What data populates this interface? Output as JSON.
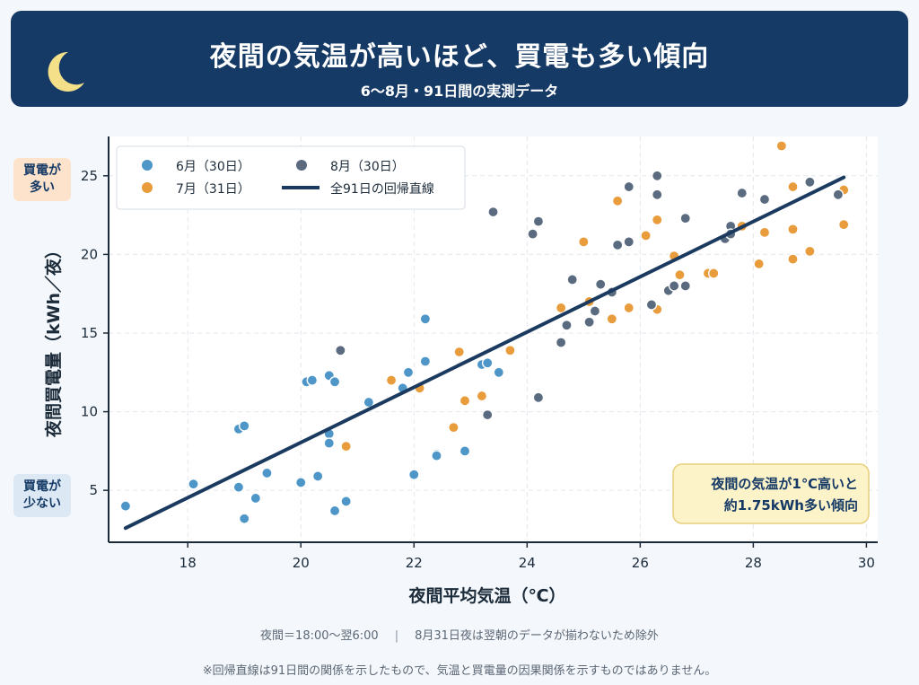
{
  "header": {
    "title": "夜間の気温が高いほど、買電も多い傾向",
    "subtitle": "6〜8月・91日間の実測データ"
  },
  "side_labels": {
    "high": "買電が\n多い",
    "low": "買電が\n少ない"
  },
  "annotation": {
    "line1": "夜間の気温が1℃高いと",
    "line2": "約1.75kWh多い傾向"
  },
  "footer": {
    "definition": "夜間＝18:00〜翌6:00",
    "exclusion": "8月31日夜は翌朝のデータが揃わないため除外",
    "disclaimer": "※回帰直線は91日間の関係を示したもので、気温と買電量の因果関係を示すものではありません。"
  },
  "colors": {
    "june": "#4e96c8",
    "july": "#e89c3c",
    "august": "#5a6b80",
    "regression": "#1b3a5f",
    "banner": "#163a66"
  },
  "chart_data": {
    "type": "scatter",
    "xlabel": "夜間平均気温（℃）",
    "ylabel": "夜間買電量（kWh／夜）",
    "xlim": [
      16.6,
      30.2
    ],
    "ylim": [
      1.7,
      27.5
    ],
    "xticks": [
      18,
      20,
      22,
      24,
      26,
      28,
      30
    ],
    "yticks": [
      5,
      10,
      15,
      20,
      25
    ],
    "grid": true,
    "legend_position": "top-left",
    "series": [
      {
        "name": "6月（30日）",
        "color": "#4e96c8",
        "points": [
          [
            16.9,
            4.0
          ],
          [
            18.1,
            5.4
          ],
          [
            18.9,
            5.2
          ],
          [
            18.9,
            8.9
          ],
          [
            19.0,
            9.1
          ],
          [
            19.0,
            3.2
          ],
          [
            19.2,
            4.5
          ],
          [
            19.4,
            6.1
          ],
          [
            20.0,
            5.5
          ],
          [
            20.1,
            11.9
          ],
          [
            20.2,
            12.0
          ],
          [
            20.3,
            5.9
          ],
          [
            20.5,
            8.6
          ],
          [
            20.5,
            12.3
          ],
          [
            20.6,
            11.9
          ],
          [
            20.5,
            8.0
          ],
          [
            20.6,
            3.7
          ],
          [
            20.8,
            4.3
          ],
          [
            21.2,
            10.6
          ],
          [
            21.8,
            11.5
          ],
          [
            21.9,
            12.5
          ],
          [
            22.0,
            6.0
          ],
          [
            22.2,
            13.2
          ],
          [
            22.2,
            15.9
          ],
          [
            22.4,
            7.3
          ],
          [
            22.9,
            7.5
          ],
          [
            23.2,
            13.0
          ],
          [
            23.3,
            13.1
          ],
          [
            23.5,
            12.5
          ],
          [
            22.4,
            7.2
          ]
        ]
      },
      {
        "name": "7月（31日）",
        "color": "#e89c3c",
        "points": [
          [
            20.8,
            7.8
          ],
          [
            21.6,
            12.0
          ],
          [
            22.1,
            11.5
          ],
          [
            22.7,
            9.0
          ],
          [
            22.8,
            13.8
          ],
          [
            22.9,
            10.7
          ],
          [
            23.2,
            11.0
          ],
          [
            23.7,
            13.9
          ],
          [
            24.6,
            16.6
          ],
          [
            25.0,
            20.8
          ],
          [
            25.1,
            17.0
          ],
          [
            25.5,
            15.9
          ],
          [
            25.6,
            23.4
          ],
          [
            25.8,
            16.6
          ],
          [
            26.1,
            21.2
          ],
          [
            26.3,
            22.2
          ],
          [
            26.3,
            16.5
          ],
          [
            26.6,
            19.9
          ],
          [
            26.7,
            18.7
          ],
          [
            27.2,
            18.8
          ],
          [
            27.3,
            18.8
          ],
          [
            27.8,
            21.8
          ],
          [
            28.1,
            19.4
          ],
          [
            28.2,
            21.4
          ],
          [
            28.5,
            26.9
          ],
          [
            28.7,
            21.6
          ],
          [
            28.7,
            19.7
          ],
          [
            28.7,
            24.3
          ],
          [
            29.0,
            20.2
          ],
          [
            29.6,
            24.1
          ],
          [
            29.6,
            21.9
          ]
        ]
      },
      {
        "name": "8月（30日）",
        "color": "#5a6b80",
        "points": [
          [
            20.7,
            13.9
          ],
          [
            23.3,
            9.8
          ],
          [
            23.4,
            22.7
          ],
          [
            24.1,
            21.3
          ],
          [
            24.2,
            22.1
          ],
          [
            24.2,
            10.9
          ],
          [
            24.6,
            14.4
          ],
          [
            24.7,
            15.5
          ],
          [
            24.8,
            18.4
          ],
          [
            25.1,
            15.7
          ],
          [
            25.2,
            16.4
          ],
          [
            25.3,
            18.1
          ],
          [
            25.5,
            17.6
          ],
          [
            25.6,
            20.6
          ],
          [
            25.8,
            24.3
          ],
          [
            25.8,
            20.8
          ],
          [
            26.2,
            16.8
          ],
          [
            26.3,
            23.8
          ],
          [
            26.3,
            25.0
          ],
          [
            26.5,
            17.7
          ],
          [
            26.6,
            18.0
          ],
          [
            26.8,
            18.0
          ],
          [
            26.8,
            22.3
          ],
          [
            27.5,
            21.0
          ],
          [
            27.6,
            21.8
          ],
          [
            27.6,
            21.3
          ],
          [
            27.8,
            23.9
          ],
          [
            28.2,
            23.5
          ],
          [
            29.0,
            24.6
          ],
          [
            29.5,
            23.8
          ]
        ]
      }
    ],
    "regression": {
      "name": "全91日の回帰直線",
      "slope": 1.75,
      "x_range": [
        16.9,
        29.6
      ],
      "y_range": [
        2.6,
        24.9
      ]
    }
  }
}
